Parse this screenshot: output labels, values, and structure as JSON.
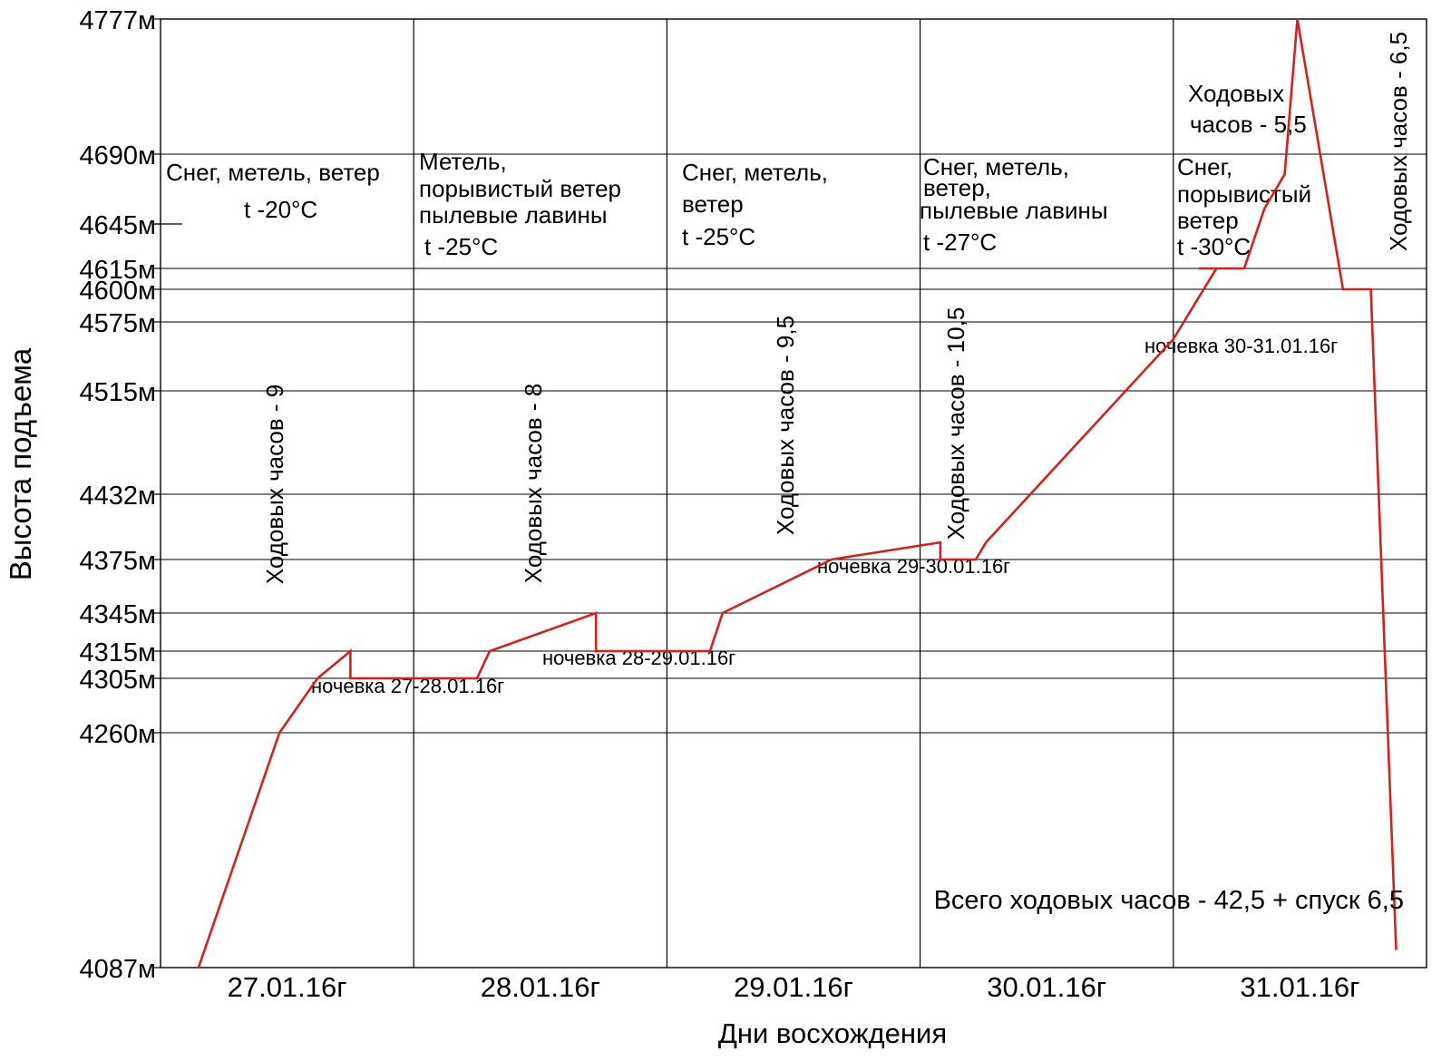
{
  "chart_data": {
    "type": "line",
    "xlabel": "Дни восхождения",
    "ylabel": "Высота подъема",
    "categories": [
      "27.01.16г",
      "28.01.16г",
      "29.01.16г",
      "30.01.16г",
      "31.01.16г"
    ],
    "x_range": [
      0,
      5
    ],
    "y_ticks": [
      {
        "value": 4087,
        "label": "4087м"
      },
      {
        "value": 4260,
        "label": "4260м"
      },
      {
        "value": 4305,
        "label": "4305м"
      },
      {
        "value": 4315,
        "label": "4315м"
      },
      {
        "value": 4345,
        "label": "4345м"
      },
      {
        "value": 4375,
        "label": "4375м"
      },
      {
        "value": 4432,
        "label": "4432м"
      },
      {
        "value": 4515,
        "label": "4515м"
      },
      {
        "value": 4575,
        "label": "4575м"
      },
      {
        "value": 4600,
        "label": "4600м"
      },
      {
        "value": 4615,
        "label": "4615м"
      },
      {
        "value": 4645,
        "label": "4645м"
      },
      {
        "value": 4690,
        "label": "4690м"
      },
      {
        "value": 4777,
        "label": "4777м"
      }
    ],
    "series": [
      {
        "color": "#d42020",
        "points": [
          [
            0.15,
            4087
          ],
          [
            0.47,
            4260
          ],
          [
            0.62,
            4305
          ],
          [
            0.75,
            4315
          ],
          [
            0.75,
            4305
          ],
          [
            1.25,
            4305
          ],
          [
            1.3,
            4315
          ],
          [
            1.72,
            4345
          ],
          [
            1.72,
            4315
          ],
          [
            2.17,
            4315
          ],
          [
            2.22,
            4345
          ],
          [
            2.65,
            4375
          ],
          [
            3.08,
            4390
          ],
          [
            3.08,
            4375
          ],
          [
            3.22,
            4375
          ],
          [
            3.26,
            4390
          ],
          [
            4.0,
            4560
          ],
          [
            4.17,
            4615
          ],
          [
            4.1,
            4615
          ],
          [
            4.28,
            4615
          ],
          [
            4.36,
            4655
          ],
          [
            4.44,
            4677
          ],
          [
            4.49,
            4777
          ],
          [
            4.49,
            4777
          ],
          [
            4.67,
            4600
          ],
          [
            4.78,
            4600
          ],
          [
            4.88,
            4100
          ]
        ]
      }
    ],
    "day_notes": [
      {
        "lines": [
          "Снег, метель, ветер",
          "t -20°C"
        ]
      },
      {
        "lines": [
          "Метель,",
          "порывистый ветер",
          "пылевые лавины",
          "t -25°C"
        ]
      },
      {
        "lines": [
          "Снег, метель,",
          "ветер",
          "t -25°C"
        ]
      },
      {
        "lines": [
          "Снег, метель,",
          "ветер,",
          "пылевые лавины",
          "t -27°C"
        ]
      },
      {
        "lines": [
          "Снег,",
          "порывистый",
          "ветер",
          "t -30°C"
        ]
      }
    ],
    "walking_hours": [
      "Ходовых часов - 9",
      "Ходовых часов - 8",
      "Ходовых часов - 9,5",
      "Ходовых часов - 10,5",
      "Ходовых часов - 6,5"
    ],
    "walking_hours_day5": [
      "Ходовых",
      "часов - 5,5"
    ],
    "overnights": [
      "ночевка 27-28.01.16г",
      "ночевка 28-29.01.16г",
      "ночевка 29-30.01.16г",
      "ночевка 30-31.01.16г"
    ],
    "total": "Всего ходовых часов - 42,5 + спуск 6,5",
    "grid": true
  }
}
